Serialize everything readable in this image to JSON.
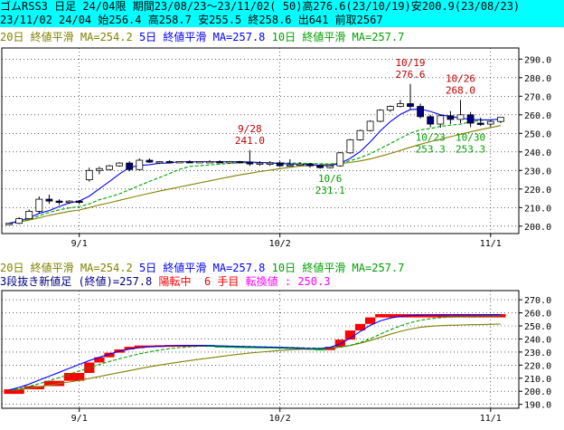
{
  "header": {
    "line1": "ゴムRSS3 日足 24/04限 期間23/08/23～23/11/02( 50)高276.6(23/10/19)安200.9(23/08/23)",
    "line2": "23/11/02 24/04 始256.4 高258.7 安255.5 終258.6 出641 前取2567"
  },
  "colors": {
    "up_candle": "#ffffff",
    "down_candle": "#000080",
    "ma20": "#808000",
    "ma5": "#0000ff",
    "ma10": "#00a000",
    "plot_bg": "#ffffff",
    "header_bg": "#00ffff",
    "brick_up": "#ff0000",
    "brick_down": "#00c000",
    "reversal_text": "#ff0000",
    "turn_text": "#ff00ff",
    "annot_high": "#c00000",
    "annot_low": "#00a000"
  },
  "chart_data": [
    {
      "type": "candlestick",
      "legend": {
        "ma20": "20日 終値平滑 MA=254.2",
        "ma5": "5日 終値平滑 MA=257.8",
        "ma10": "10日 終値平滑 MA=257.7"
      },
      "ylim": [
        196,
        296
      ],
      "yticks": [
        "200.0",
        "210.0",
        "220.0",
        "230.0",
        "240.0",
        "250.0",
        "260.0",
        "270.0",
        "280.0",
        "290.0"
      ],
      "xticks": [
        {
          "label": "9/1",
          "index": 7
        },
        {
          "label": "10/2",
          "index": 27
        },
        {
          "label": "11/1",
          "index": 48
        }
      ],
      "ohlc": [
        [
          200.9,
          201.8,
          200.9,
          201.5
        ],
        [
          201.5,
          204.8,
          201.0,
          204.0
        ],
        [
          204.0,
          209.0,
          203.5,
          208.0
        ],
        [
          208.0,
          216.0,
          207.0,
          214.5
        ],
        [
          214.5,
          217.0,
          212.0,
          213.5
        ],
        [
          213.5,
          214.5,
          211.5,
          213.0
        ],
        [
          213.0,
          214.0,
          212.0,
          213.5
        ],
        [
          213.5,
          214.0,
          212.0,
          213.0
        ],
        [
          225.0,
          231.5,
          224.0,
          230.0
        ],
        [
          230.0,
          232.0,
          228.0,
          231.0
        ],
        [
          230.5,
          233.0,
          230.0,
          232.5
        ],
        [
          232.5,
          234.5,
          232.0,
          234.0
        ],
        [
          234.0,
          235.0,
          229.5,
          230.5
        ],
        [
          230.5,
          236.5,
          230.0,
          235.5
        ],
        [
          235.5,
          236.5,
          234.0,
          234.5
        ],
        [
          234.5,
          235.0,
          233.5,
          234.8
        ],
        [
          234.8,
          235.5,
          234.0,
          234.5
        ],
        [
          234.5,
          235.0,
          234.0,
          234.8
        ],
        [
          234.8,
          235.5,
          234.0,
          234.5
        ],
        [
          234.5,
          235.0,
          234.0,
          234.8
        ],
        [
          234.8,
          235.5,
          234.0,
          234.8
        ],
        [
          234.8,
          235.5,
          234.0,
          234.5
        ],
        [
          234.5,
          235.0,
          234.0,
          234.8
        ],
        [
          234.8,
          235.2,
          234.0,
          234.5
        ],
        [
          234.5,
          241.0,
          232.5,
          233.5
        ],
        [
          233.5,
          235.0,
          232.5,
          234.0
        ],
        [
          234.0,
          235.0,
          232.5,
          234.0
        ],
        [
          234.0,
          235.0,
          232.0,
          232.5
        ],
        [
          233.0,
          236.0,
          232.0,
          233.0
        ],
        [
          233.0,
          234.5,
          232.5,
          233.5
        ],
        [
          233.5,
          234.0,
          231.5,
          232.5
        ],
        [
          232.5,
          233.0,
          231.0,
          231.5
        ],
        [
          231.5,
          233.0,
          231.1,
          232.5
        ],
        [
          232.5,
          240.0,
          232.0,
          239.5
        ],
        [
          239.5,
          247.0,
          239.0,
          246.5
        ],
        [
          246.5,
          252.0,
          246.0,
          251.5
        ],
        [
          251.5,
          257.0,
          251.0,
          256.5
        ],
        [
          256.5,
          263.0,
          256.0,
          262.5
        ],
        [
          262.5,
          265.0,
          261.5,
          264.5
        ],
        [
          264.5,
          268.0,
          264.0,
          266.0
        ],
        [
          266.0,
          276.6,
          263.0,
          264.5
        ],
        [
          264.5,
          266.0,
          258.0,
          259.0
        ],
        [
          259.0,
          260.0,
          253.3,
          255.0
        ],
        [
          255.0,
          260.0,
          253.0,
          259.5
        ],
        [
          259.5,
          262.0,
          255.0,
          257.5
        ],
        [
          257.5,
          268.0,
          255.5,
          260.0
        ],
        [
          260.0,
          261.5,
          253.3,
          255.5
        ],
        [
          255.5,
          258.5,
          254.0,
          255.0
        ],
        [
          255.0,
          257.5,
          253.5,
          256.4
        ],
        [
          256.4,
          258.7,
          255.5,
          258.6
        ]
      ],
      "ma5": [
        201.5,
        202.8,
        204.5,
        206.9,
        208.4,
        210.6,
        212.5,
        213.5,
        216.2,
        220.1,
        224.0,
        228.1,
        231.6,
        232.7,
        233.1,
        233.9,
        234.0,
        234.8,
        234.6,
        234.7,
        234.7,
        234.6,
        234.7,
        234.7,
        234.6,
        234.3,
        234.1,
        233.7,
        233.5,
        233.3,
        233.1,
        232.7,
        232.6,
        233.9,
        236.5,
        240.2,
        245.3,
        251.3,
        256.3,
        260.2,
        262.8,
        263.1,
        261.8,
        260.0,
        259.1,
        258.2,
        257.5,
        257.3,
        257.2,
        257.8
      ],
      "ma10": [
        201.5,
        202.5,
        203.7,
        205.6,
        207.4,
        208.8,
        209.8,
        210.5,
        212.0,
        214.2,
        215.7,
        217.4,
        219.6,
        221.9,
        224.1,
        226.2,
        228.4,
        230.6,
        232.2,
        232.6,
        233.0,
        233.4,
        233.8,
        234.1,
        234.2,
        234.2,
        234.2,
        234.1,
        234.0,
        233.9,
        233.8,
        233.6,
        233.5,
        234.0,
        235.2,
        236.9,
        239.0,
        241.7,
        244.5,
        247.3,
        250.1,
        251.9,
        252.6,
        253.8,
        254.4,
        255.0,
        256.2,
        257.0,
        257.3,
        257.7
      ],
      "ma20": [
        201.5,
        202.3,
        203.2,
        204.5,
        205.8,
        206.9,
        207.9,
        208.7,
        210.0,
        211.4,
        212.6,
        213.9,
        215.2,
        216.5,
        217.7,
        218.9,
        220.0,
        221.1,
        222.2,
        223.3,
        224.4,
        225.5,
        226.6,
        227.6,
        228.5,
        229.4,
        230.2,
        231.0,
        231.7,
        232.4,
        232.7,
        233.0,
        233.3,
        233.7,
        234.3,
        235.1,
        236.2,
        237.6,
        239.1,
        240.8,
        242.5,
        244.1,
        245.5,
        246.9,
        248.2,
        249.5,
        250.8,
        252.0,
        253.1,
        254.2
      ],
      "annotations": [
        {
          "text": "9/28",
          "value": "241.0",
          "index": 24,
          "kind": "high"
        },
        {
          "text": "10/19",
          "value": "276.6",
          "index": 40,
          "kind": "high"
        },
        {
          "text": "10/26",
          "value": "268.0",
          "index": 45,
          "kind": "high"
        },
        {
          "text": "10/6",
          "value": "231.1",
          "index": 32,
          "kind": "low"
        },
        {
          "text": "10/23",
          "value": "253.3",
          "index": 42,
          "kind": "low"
        },
        {
          "text": "10/30",
          "value": "253.3",
          "index": 46,
          "kind": "low"
        }
      ]
    },
    {
      "type": "three-line-break",
      "legend": {
        "ma20": "20日 終値平滑 MA=254.2",
        "ma5": "5日 終値平滑 MA=257.8",
        "ma10": "10日 終値平滑 MA=257.7"
      },
      "status": {
        "main": "3段抜き新値足 (終値)=257.8",
        "state": "陽転中",
        "count": "6 手目",
        "turn": "転換値 : 250.3"
      },
      "ylim": [
        187,
        277
      ],
      "yticks": [
        "190.0",
        "200.0",
        "210.0",
        "220.0",
        "230.0",
        "240.0",
        "250.0",
        "260.0",
        "270.0"
      ],
      "xticks": [
        {
          "label": "9/1",
          "index": 7
        },
        {
          "label": "10/2",
          "index": 27
        },
        {
          "label": "11/1",
          "index": 48
        }
      ],
      "bricks": [
        {
          "i": 0,
          "lo": 198.0,
          "hi": 201.5,
          "dir": "up"
        },
        {
          "i": 1,
          "lo": 198.0,
          "hi": 201.5,
          "dir": "up"
        },
        {
          "i": 2,
          "lo": 201.5,
          "hi": 204.0,
          "dir": "up"
        },
        {
          "i": 3,
          "lo": 201.5,
          "hi": 204.0,
          "dir": "up"
        },
        {
          "i": 4,
          "lo": 204.0,
          "hi": 208.0,
          "dir": "up"
        },
        {
          "i": 5,
          "lo": 204.0,
          "hi": 208.0,
          "dir": "up"
        },
        {
          "i": 6,
          "lo": 208.0,
          "hi": 214.0,
          "dir": "up"
        },
        {
          "i": 7,
          "lo": 208.0,
          "hi": 214.0,
          "dir": "up"
        },
        {
          "i": 8,
          "lo": 214.0,
          "hi": 222.0,
          "dir": "up"
        },
        {
          "i": 9,
          "lo": 222.0,
          "hi": 226.0,
          "dir": "up"
        },
        {
          "i": 10,
          "lo": 226.0,
          "hi": 229.5,
          "dir": "up"
        },
        {
          "i": 11,
          "lo": 229.5,
          "hi": 232.0,
          "dir": "up"
        },
        {
          "i": 12,
          "lo": 232.0,
          "hi": 234.0,
          "dir": "up"
        },
        {
          "i": 13,
          "lo": 233.0,
          "hi": 235.0,
          "dir": "up"
        },
        {
          "i": 14,
          "lo": 234.0,
          "hi": 235.0,
          "dir": "up"
        },
        {
          "i": 15,
          "lo": 234.4,
          "hi": 235.2,
          "dir": "up"
        },
        {
          "i": 16,
          "lo": 234.6,
          "hi": 235.4,
          "dir": "up"
        },
        {
          "i": 17,
          "lo": 234.7,
          "hi": 235.5,
          "dir": "up"
        },
        {
          "i": 18,
          "lo": 234.7,
          "hi": 235.5,
          "dir": "up"
        },
        {
          "i": 19,
          "lo": 234.7,
          "hi": 235.5,
          "dir": "up"
        },
        {
          "i": 20,
          "lo": 234.0,
          "hi": 235.5,
          "dir": "down"
        },
        {
          "i": 21,
          "lo": 233.6,
          "hi": 234.8,
          "dir": "down"
        },
        {
          "i": 22,
          "lo": 233.4,
          "hi": 234.6,
          "dir": "down"
        },
        {
          "i": 23,
          "lo": 233.3,
          "hi": 234.4,
          "dir": "down"
        },
        {
          "i": 24,
          "lo": 233.2,
          "hi": 234.3,
          "dir": "down"
        },
        {
          "i": 25,
          "lo": 233.2,
          "hi": 234.2,
          "dir": "down"
        },
        {
          "i": 26,
          "lo": 233.1,
          "hi": 234.1,
          "dir": "down"
        },
        {
          "i": 27,
          "lo": 233.0,
          "hi": 234.0,
          "dir": "down"
        },
        {
          "i": 28,
          "lo": 232.7,
          "hi": 233.8,
          "dir": "down"
        },
        {
          "i": 29,
          "lo": 232.3,
          "hi": 233.5,
          "dir": "down"
        },
        {
          "i": 30,
          "lo": 231.8,
          "hi": 233.0,
          "dir": "down"
        },
        {
          "i": 31,
          "lo": 231.2,
          "hi": 232.6,
          "dir": "down"
        },
        {
          "i": 32,
          "lo": 231.5,
          "hi": 234.0,
          "dir": "up"
        },
        {
          "i": 33,
          "lo": 234.0,
          "hi": 239.5,
          "dir": "up"
        },
        {
          "i": 34,
          "lo": 239.5,
          "hi": 246.5,
          "dir": "up"
        },
        {
          "i": 35,
          "lo": 246.5,
          "hi": 251.5,
          "dir": "up"
        },
        {
          "i": 36,
          "lo": 251.5,
          "hi": 256.5,
          "dir": "up"
        },
        {
          "i": 37,
          "lo": 256.5,
          "hi": 259.0,
          "dir": "up"
        },
        {
          "i": 38,
          "lo": 256.5,
          "hi": 259.0,
          "dir": "up"
        },
        {
          "i": 39,
          "lo": 256.5,
          "hi": 259.0,
          "dir": "up"
        },
        {
          "i": 40,
          "lo": 256.5,
          "hi": 259.0,
          "dir": "up"
        },
        {
          "i": 41,
          "lo": 256.5,
          "hi": 259.0,
          "dir": "up"
        },
        {
          "i": 42,
          "lo": 256.5,
          "hi": 259.0,
          "dir": "up"
        },
        {
          "i": 43,
          "lo": 256.5,
          "hi": 259.0,
          "dir": "up"
        },
        {
          "i": 44,
          "lo": 256.5,
          "hi": 259.0,
          "dir": "up"
        },
        {
          "i": 45,
          "lo": 256.5,
          "hi": 259.0,
          "dir": "up"
        },
        {
          "i": 46,
          "lo": 256.5,
          "hi": 259.0,
          "dir": "up"
        },
        {
          "i": 47,
          "lo": 256.5,
          "hi": 259.0,
          "dir": "up"
        },
        {
          "i": 48,
          "lo": 256.5,
          "hi": 259.0,
          "dir": "up"
        },
        {
          "i": 49,
          "lo": 256.5,
          "hi": 259.0,
          "dir": "up"
        }
      ],
      "ma20": [
        200.5,
        201.3,
        202.2,
        203.4,
        204.7,
        205.9,
        207.1,
        208.3,
        209.8,
        211.3,
        212.8,
        214.3,
        215.8,
        217.3,
        218.7,
        220.0,
        221.2,
        222.4,
        223.5,
        224.5,
        225.5,
        226.5,
        227.5,
        228.4,
        229.2,
        229.9,
        230.6,
        231.2,
        231.7,
        232.1,
        232.4,
        232.7,
        233.1,
        233.8,
        235.0,
        236.7,
        238.8,
        241.2,
        243.6,
        245.8,
        247.6,
        248.9,
        249.7,
        250.2,
        250.5,
        250.7,
        250.9,
        251.0,
        251.2,
        251.4
      ],
      "ma5": [
        201.0,
        203.0,
        205.5,
        208.5,
        211.5,
        214.5,
        217.5,
        220.5,
        223.5,
        226.0,
        228.5,
        230.6,
        232.2,
        233.3,
        234.0,
        234.5,
        234.8,
        235.0,
        235.0,
        235.0,
        234.9,
        234.7,
        234.5,
        234.3,
        234.1,
        233.9,
        233.7,
        233.5,
        233.2,
        232.9,
        232.7,
        232.7,
        233.6,
        236.2,
        240.5,
        245.7,
        250.4,
        253.8,
        256.0,
        257.3,
        257.9,
        258.2,
        258.3,
        258.4,
        258.5,
        258.5,
        258.5,
        258.5,
        258.6,
        258.6
      ],
      "ma10": [
        200.6,
        202.0,
        203.7,
        205.8,
        208.0,
        210.5,
        213.0,
        215.5,
        218.0,
        220.5,
        222.8,
        224.9,
        226.8,
        228.6,
        230.2,
        231.5,
        232.6,
        233.4,
        234.0,
        234.4,
        234.6,
        234.6,
        234.5,
        234.4,
        234.3,
        234.1,
        233.9,
        233.7,
        233.5,
        233.3,
        233.1,
        232.9,
        233.0,
        233.7,
        235.1,
        237.3,
        240.2,
        243.6,
        247.0,
        250.0,
        252.5,
        254.3,
        255.5,
        256.3,
        256.8,
        257.1,
        257.3,
        257.4,
        257.5,
        257.7
      ]
    }
  ]
}
